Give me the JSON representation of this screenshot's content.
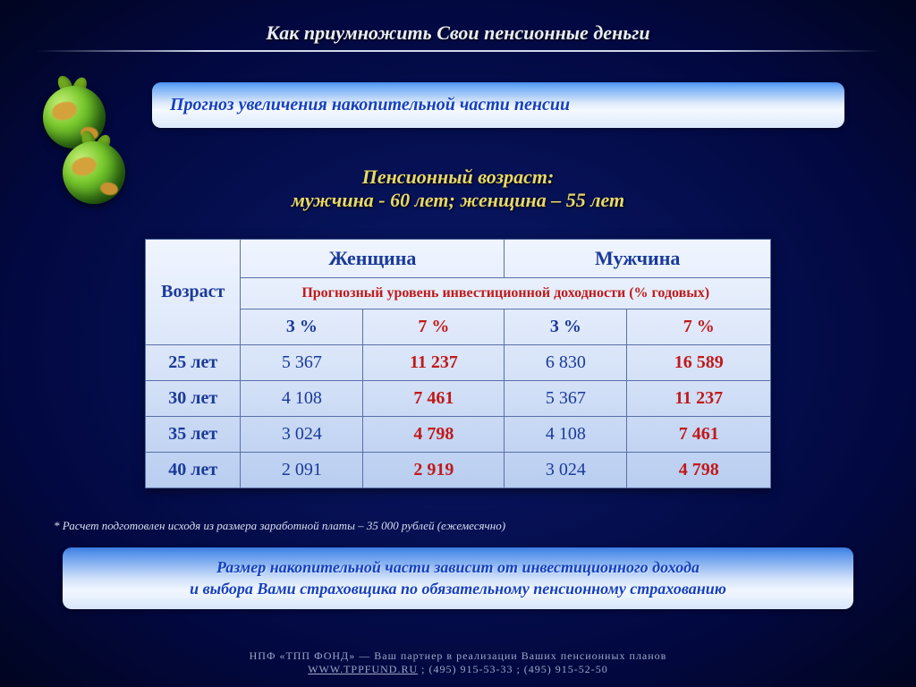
{
  "header": {
    "title": "Как  приумножить Свои пенсионные деньги"
  },
  "panel": {
    "title": "Прогноз увеличения накопительной части пенсии"
  },
  "subhead": {
    "line1": "Пенсионный возраст:",
    "line2": "мужчина - 60 лет; женщина – 55 лет"
  },
  "table": {
    "age_header": "Возраст",
    "gender_female": "Женщина",
    "gender_male": "Мужчина",
    "subheader": "Прогнозный уровень инвестиционной доходности (% годовых)",
    "pct_low": "3 %",
    "pct_high": "7 %",
    "rows": [
      {
        "age": "25 лет",
        "f_low": "5 367",
        "f_high": "11 237",
        "m_low": "6 830",
        "m_high": "16 589"
      },
      {
        "age": "30 лет",
        "f_low": "4 108",
        "f_high": "7 461",
        "m_low": "5 367",
        "m_high": "11 237"
      },
      {
        "age": "35 лет",
        "f_low": "3 024",
        "f_high": "4 798",
        "m_low": "4 108",
        "m_high": "7 461"
      },
      {
        "age": "40 лет",
        "f_low": "2 091",
        "f_high": "2 919",
        "m_low": "3 024",
        "m_high": "4 798"
      }
    ]
  },
  "footnote": "*  Расчет подготовлен исходя из размера заработной платы – 35 000 рублей (ежемесячно)",
  "panel2": {
    "line1": "Размер накопительной части зависит от инвестиционного дохода",
    "line2": "и выбора Вами страховщика по обязательному пенсионному страхованию"
  },
  "footer": {
    "org": "НПФ «ТПП ФОНД» — Ваш партнер в реализации Ваших пенсионных планов",
    "site": "WWW.TPPFUND.RU",
    "phones_sep": "; ",
    "phone1": "(495) 915-53-33",
    "phone2": "(495) 915-52-50"
  },
  "style": {
    "colors": {
      "bg_center": "#0a1a6a",
      "bg_edge": "#010520",
      "panel_grad_top": "#4a8ff0",
      "panel_grad_bottom": "#dce9fb",
      "accent_blue": "#1540c0",
      "accent_red": "#c01a1a",
      "heading_gold": "#e8d86a",
      "border": "#5a6fa8",
      "footer_text": "#9aa8c8"
    },
    "fonts": {
      "body": "Times New Roman",
      "title_size_pt": 22,
      "table_cell_size_pt": 20
    }
  }
}
